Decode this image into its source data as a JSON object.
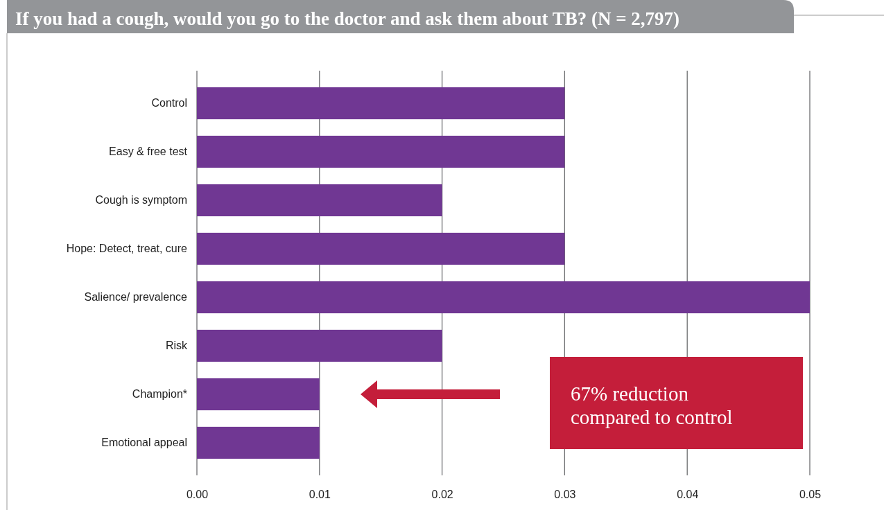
{
  "chart_data": {
    "type": "bar",
    "orientation": "horizontal",
    "title": "If you had a cough, would you go to the doctor and ask them about TB? (N = 2,797)",
    "categories": [
      "Control",
      "Easy & free test",
      "Cough is symptom",
      "Hope: Detect, treat, cure",
      "Salience/ prevalence",
      "Risk",
      "Champion*",
      "Emotional appeal"
    ],
    "values": [
      0.03,
      0.03,
      0.02,
      0.03,
      0.05,
      0.02,
      0.01,
      0.01
    ],
    "color": "#703793",
    "xlim": [
      0,
      0.05
    ],
    "xticks": [
      {
        "value": 0,
        "label": "0.00"
      },
      0.01,
      0.02,
      0.03,
      0.04,
      0.05
    ],
    "grid": "x",
    "annotations": [
      "67% reduction compared to control"
    ]
  }
}
